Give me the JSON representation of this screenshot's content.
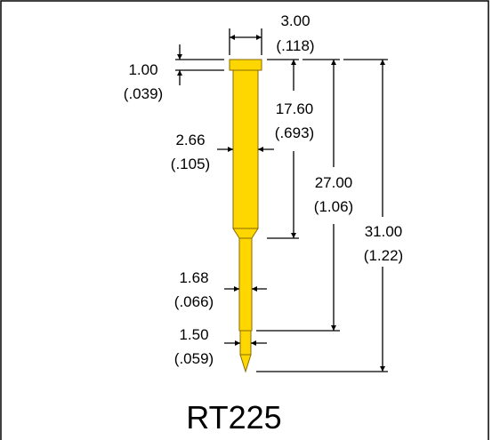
{
  "part_number": "RT225",
  "dimensions": {
    "head_width": {
      "mm": "3.00",
      "in": "(.118)"
    },
    "head_height": {
      "mm": "1.00",
      "in": "(.039)"
    },
    "barrel_diameter": {
      "mm": "2.66",
      "in": "(.105)"
    },
    "barrel_length": {
      "mm": "17.60",
      "in": "(.693)"
    },
    "length_to_tip_shoulder": {
      "mm": "27.00",
      "in": "(1.06)"
    },
    "overall_length": {
      "mm": "31.00",
      "in": "(1.22)"
    },
    "plunger_diameter": {
      "mm": "1.68",
      "in": "(.066)"
    },
    "tip_diameter": {
      "mm": "1.50",
      "in": "(.059)"
    }
  },
  "colors": {
    "pin_fill": "#FFD700",
    "pin_outline": "#8a6a00",
    "lines": "#000000",
    "background": "#ffffff"
  }
}
